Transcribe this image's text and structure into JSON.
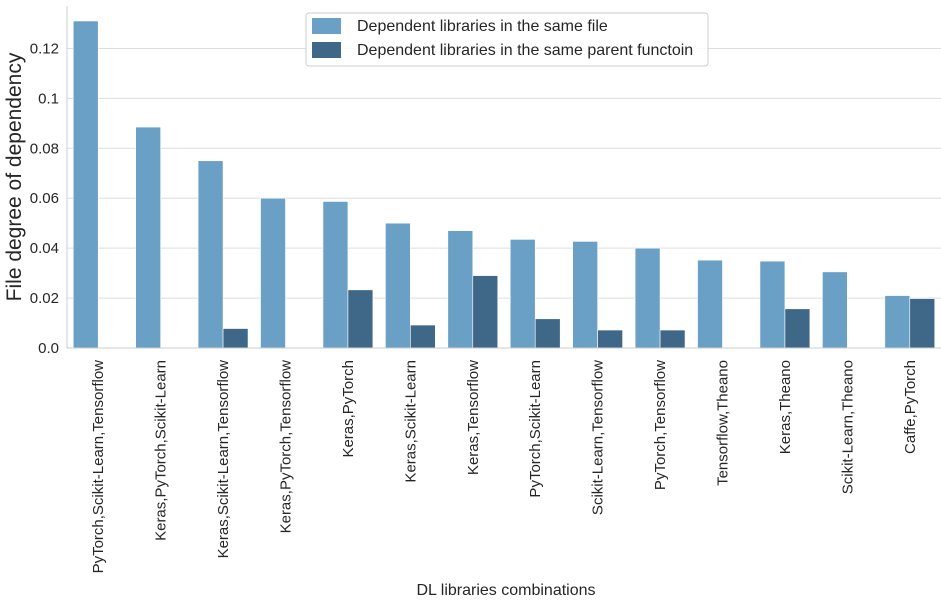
{
  "chart_data": {
    "type": "bar",
    "title": "",
    "xlabel": "DL libraries combinations",
    "ylabel": "File degree of dependency",
    "ylim": [
      0,
      0.137
    ],
    "yticks": [
      "0.0",
      "0.02",
      "0.04",
      "0.06",
      "0.08",
      "0.1",
      "0.12"
    ],
    "ytick_values": [
      0,
      0.02,
      0.04,
      0.06,
      0.08,
      0.1,
      0.12
    ],
    "grid": "horizontal",
    "legend_position": "top-center",
    "categories": [
      "PyTorch,Scikit-Learn,Tensorflow",
      "Keras,PyTorch,Scikit-Learn",
      "Keras,Scikit-Learn,Tensorflow",
      "Keras,PyTorch,Tensorflow",
      "Keras,PyTorch",
      "Keras,Scikit-Learn",
      "Keras,Tensorflow",
      "PyTorch,Scikit-Learn",
      "Scikit-Learn,Tensorflow",
      "PyTorch,Tensorflow",
      "Tensorflow,Theano",
      "Keras,Theano",
      "Scikit-Learn,Theano",
      "Caffe,PyTorch"
    ],
    "series": [
      {
        "name": "Dependent libraries in the same file",
        "color": "#6a9fc6",
        "values": [
          0.131,
          0.0885,
          0.075,
          0.06,
          0.0587,
          0.05,
          0.047,
          0.0435,
          0.0427,
          0.04,
          0.0352,
          0.0348,
          0.0305,
          0.021
        ]
      },
      {
        "name": "Dependent libraries in the same parent functoin",
        "color": "#3f6888",
        "values": [
          0,
          0,
          0.0078,
          0,
          0.0233,
          0.0092,
          0.029,
          0.0117,
          0.0072,
          0.0072,
          0,
          0.0157,
          0,
          0.0198
        ]
      }
    ]
  }
}
